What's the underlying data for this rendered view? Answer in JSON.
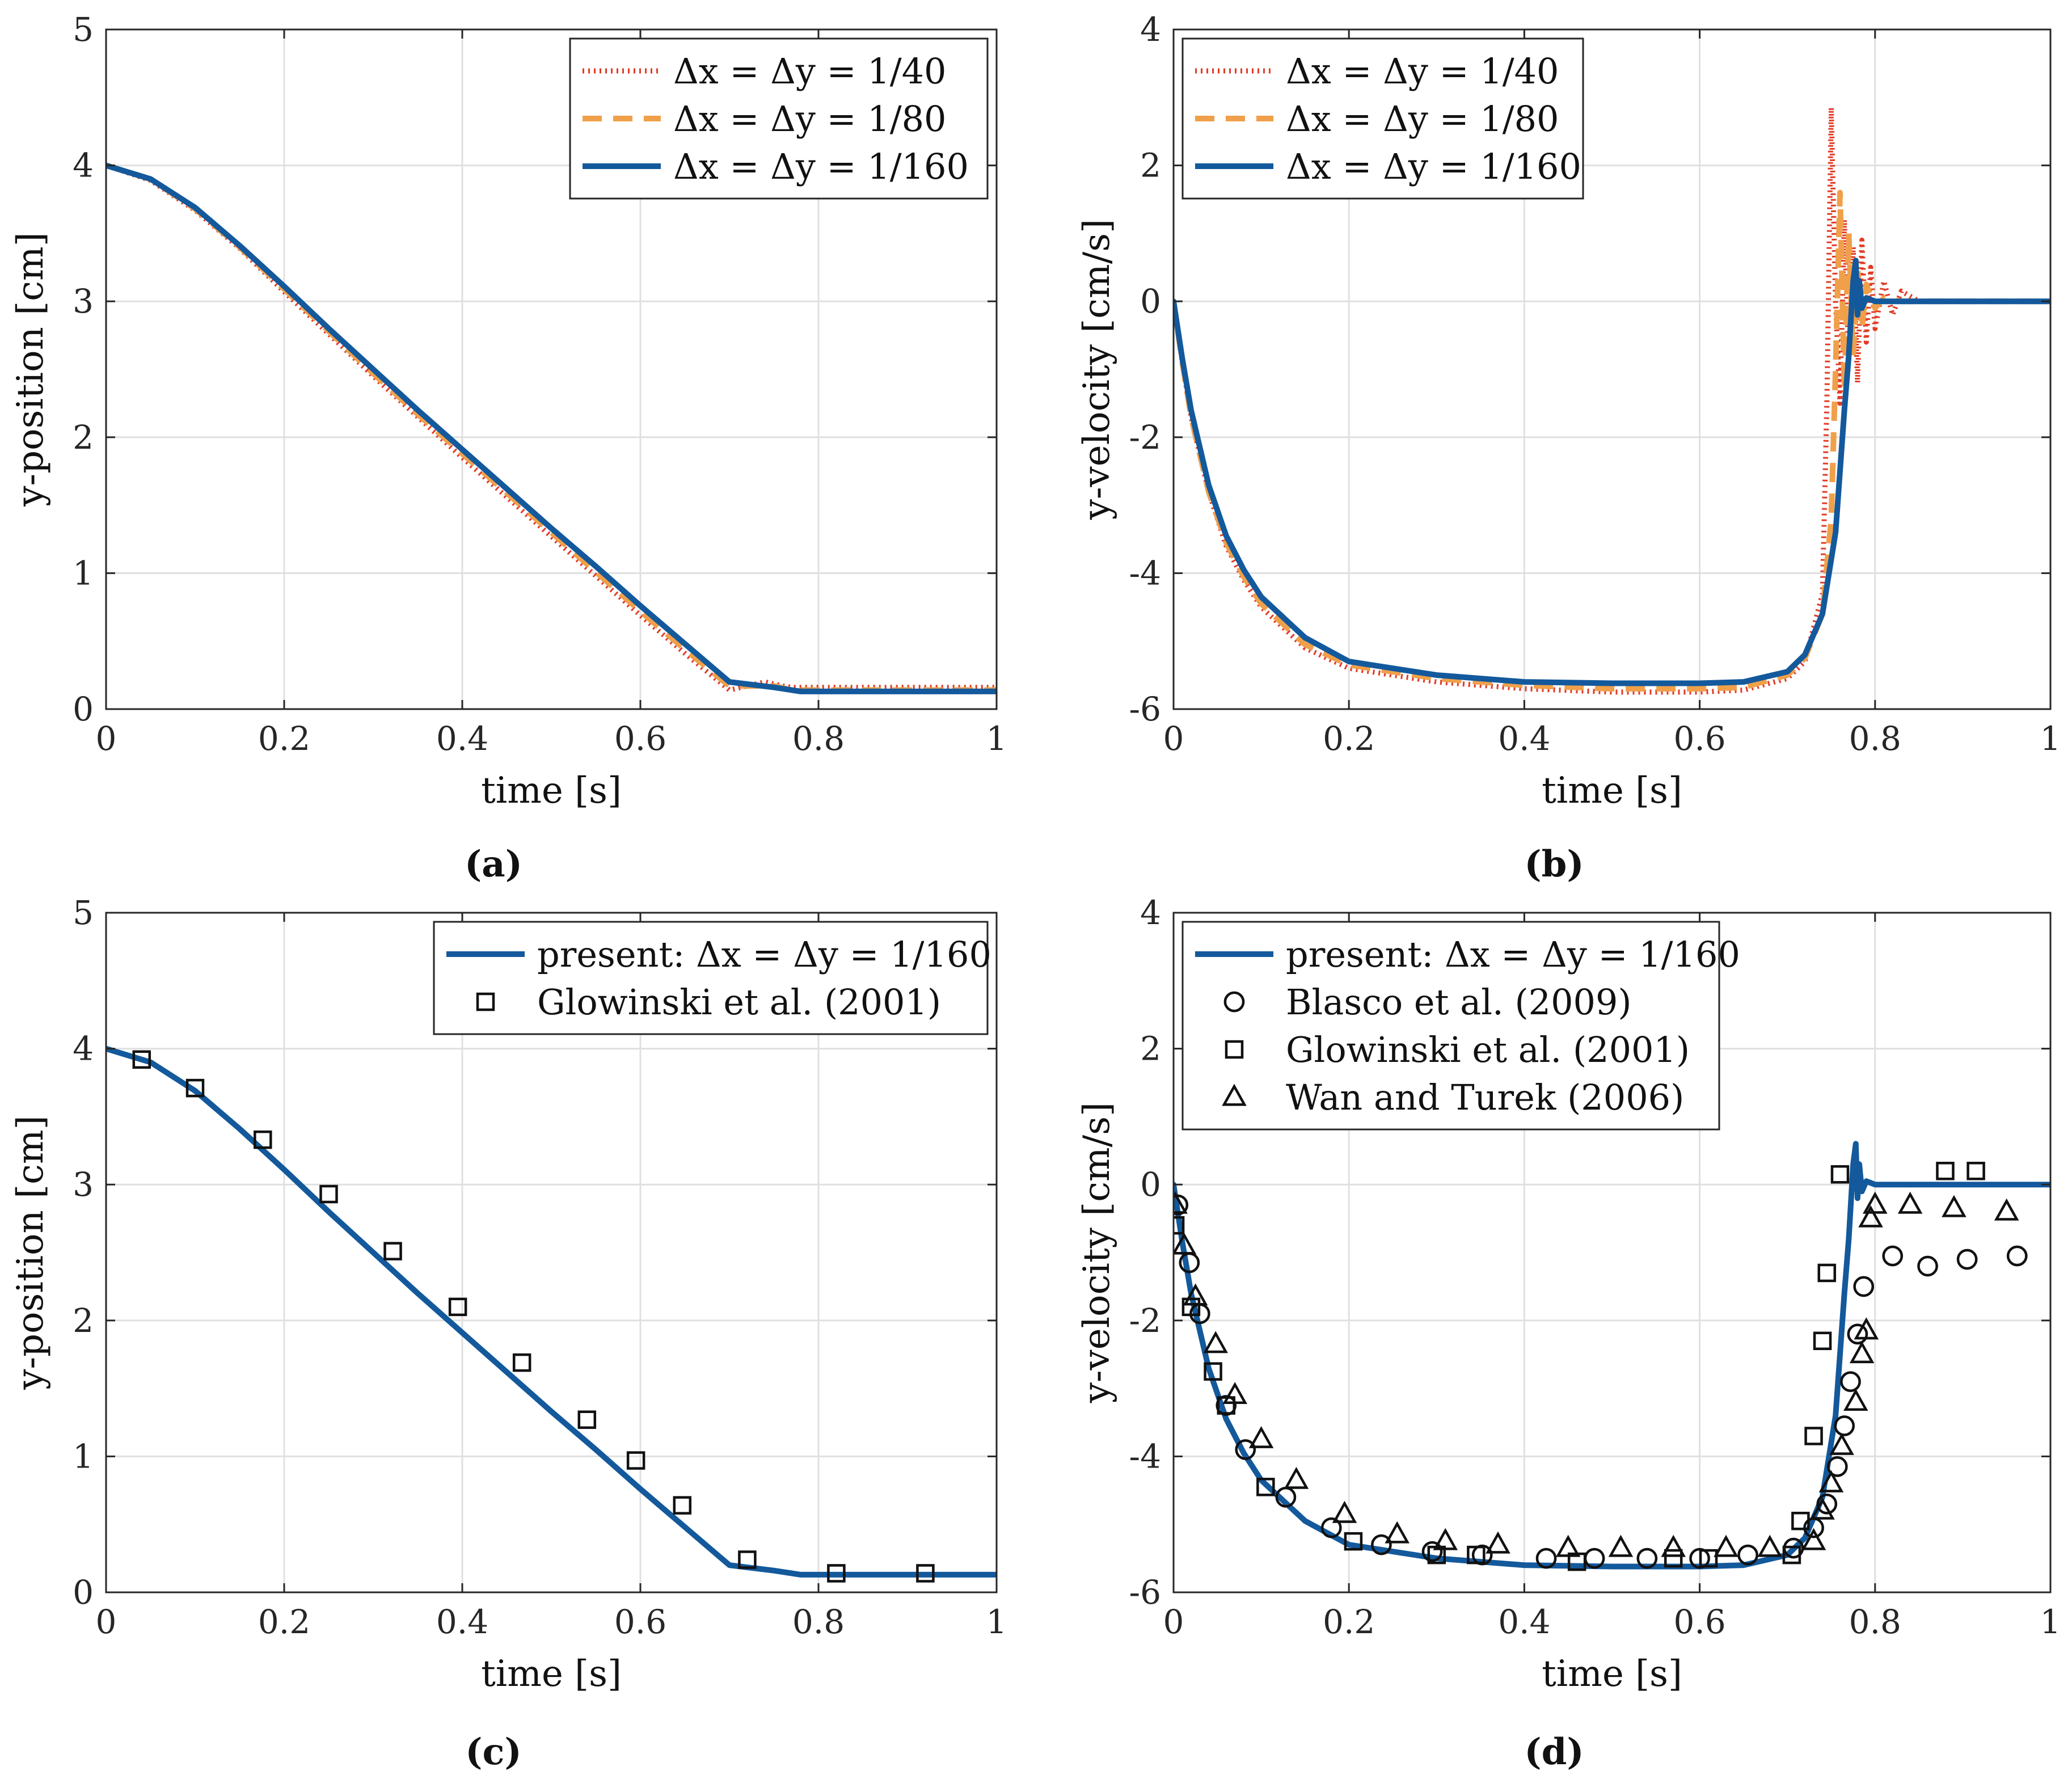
{
  "colors": {
    "red": "#e23b26",
    "orange": "#f0a04a",
    "blue": "#13599c",
    "black": "#111111",
    "grid": "#e0e0e0"
  },
  "chart_data": [
    {
      "id": "a",
      "type": "line",
      "panel_label": "(a)",
      "xlabel": "time [s]",
      "ylabel": "y-position [cm]",
      "xlim": [
        0,
        1
      ],
      "ylim": [
        0,
        5
      ],
      "xticks": [
        0,
        0.2,
        0.4,
        0.6,
        0.8,
        1
      ],
      "yticks": [
        0,
        1,
        2,
        3,
        4,
        5
      ],
      "grid": true,
      "legend_placement": "top-right",
      "series": [
        {
          "name": "Δx = Δy = 1/40",
          "style": "dotted",
          "color": "red",
          "x": [
            0,
            0.05,
            0.1,
            0.15,
            0.2,
            0.25,
            0.3,
            0.35,
            0.4,
            0.45,
            0.5,
            0.55,
            0.6,
            0.65,
            0.7,
            0.74,
            0.76,
            0.77,
            0.8,
            0.9,
            1.0
          ],
          "y": [
            4.0,
            3.89,
            3.67,
            3.39,
            3.07,
            2.76,
            2.45,
            2.15,
            1.85,
            1.56,
            1.27,
            0.98,
            0.69,
            0.41,
            0.14,
            0.2,
            0.17,
            0.16,
            0.16,
            0.16,
            0.16
          ]
        },
        {
          "name": "Δx = Δy = 1/80",
          "style": "dashed",
          "color": "orange",
          "x": [
            0,
            0.05,
            0.1,
            0.15,
            0.2,
            0.25,
            0.3,
            0.35,
            0.4,
            0.45,
            0.5,
            0.55,
            0.6,
            0.65,
            0.7,
            0.75,
            0.77,
            0.8,
            0.9,
            1.0
          ],
          "y": [
            4.0,
            3.9,
            3.68,
            3.4,
            3.09,
            2.78,
            2.47,
            2.17,
            1.88,
            1.59,
            1.3,
            1.01,
            0.72,
            0.44,
            0.17,
            0.17,
            0.14,
            0.14,
            0.14,
            0.14
          ]
        },
        {
          "name": "Δx = Δy = 1/160",
          "style": "solid",
          "color": "blue",
          "x": [
            0,
            0.05,
            0.1,
            0.15,
            0.2,
            0.25,
            0.3,
            0.35,
            0.4,
            0.45,
            0.5,
            0.55,
            0.6,
            0.65,
            0.7,
            0.75,
            0.78,
            0.8,
            0.9,
            1.0
          ],
          "y": [
            4.0,
            3.9,
            3.69,
            3.41,
            3.11,
            2.8,
            2.5,
            2.2,
            1.91,
            1.62,
            1.33,
            1.05,
            0.76,
            0.48,
            0.2,
            0.16,
            0.13,
            0.13,
            0.13,
            0.13
          ]
        }
      ]
    },
    {
      "id": "b",
      "type": "line",
      "panel_label": "(b)",
      "xlabel": "time [s]",
      "ylabel": "y-velocity [cm/s]",
      "xlim": [
        0,
        1
      ],
      "ylim": [
        -6,
        4
      ],
      "xticks": [
        0,
        0.2,
        0.4,
        0.6,
        0.8,
        1
      ],
      "yticks": [
        -6,
        -4,
        -2,
        0,
        2,
        4
      ],
      "grid": true,
      "legend_placement": "top-left",
      "series": [
        {
          "name": "Δx = Δy = 1/40",
          "style": "dotted",
          "color": "red",
          "x": [
            0,
            0.01,
            0.02,
            0.04,
            0.06,
            0.08,
            0.1,
            0.15,
            0.2,
            0.3,
            0.4,
            0.5,
            0.6,
            0.65,
            0.7,
            0.72,
            0.74,
            0.745,
            0.75,
            0.755,
            0.76,
            0.765,
            0.77,
            0.775,
            0.78,
            0.785,
            0.79,
            0.795,
            0.8,
            0.81,
            0.82,
            0.83,
            0.85,
            0.9,
            1.0
          ],
          "y": [
            0,
            -0.9,
            -1.7,
            -2.8,
            -3.6,
            -4.1,
            -4.5,
            -5.1,
            -5.4,
            -5.6,
            -5.7,
            -5.75,
            -5.75,
            -5.72,
            -5.55,
            -5.3,
            -4.3,
            -1.5,
            2.85,
            0.0,
            -1.5,
            1.2,
            -0.9,
            0.8,
            -1.2,
            0.9,
            -0.6,
            0.5,
            -0.4,
            0.3,
            -0.2,
            0.15,
            0.0,
            0.0,
            0.0
          ]
        },
        {
          "name": "Δx = Δy = 1/80",
          "style": "dashed",
          "color": "orange",
          "x": [
            0,
            0.01,
            0.02,
            0.04,
            0.06,
            0.08,
            0.1,
            0.15,
            0.2,
            0.3,
            0.4,
            0.5,
            0.6,
            0.65,
            0.7,
            0.72,
            0.74,
            0.75,
            0.755,
            0.76,
            0.765,
            0.77,
            0.775,
            0.78,
            0.785,
            0.79,
            0.8,
            0.81,
            0.83,
            0.9,
            1.0
          ],
          "y": [
            0,
            -0.9,
            -1.7,
            -2.8,
            -3.55,
            -4.05,
            -4.45,
            -5.05,
            -5.35,
            -5.55,
            -5.65,
            -5.7,
            -5.7,
            -5.68,
            -5.5,
            -5.25,
            -4.6,
            -3.2,
            -1.0,
            1.6,
            -1.3,
            1.0,
            -0.8,
            0.5,
            -0.4,
            0.25,
            -0.1,
            0.05,
            0.0,
            0.0,
            0.0
          ]
        },
        {
          "name": "Δx = Δy = 1/160",
          "style": "solid",
          "color": "blue",
          "x": [
            0,
            0.01,
            0.02,
            0.04,
            0.06,
            0.08,
            0.1,
            0.15,
            0.2,
            0.3,
            0.4,
            0.5,
            0.6,
            0.65,
            0.7,
            0.72,
            0.74,
            0.755,
            0.765,
            0.77,
            0.775,
            0.778,
            0.78,
            0.782,
            0.785,
            0.79,
            0.8,
            0.85,
            0.9,
            1.0
          ],
          "y": [
            0,
            -0.85,
            -1.6,
            -2.7,
            -3.45,
            -3.95,
            -4.35,
            -4.95,
            -5.3,
            -5.5,
            -5.6,
            -5.62,
            -5.62,
            -5.6,
            -5.45,
            -5.2,
            -4.6,
            -3.4,
            -1.6,
            -0.8,
            0.3,
            0.6,
            -0.2,
            0.3,
            -0.1,
            0.05,
            0.0,
            0.0,
            0.0,
            0.0
          ]
        }
      ]
    },
    {
      "id": "c",
      "type": "line",
      "panel_label": "(c)",
      "xlabel": "time [s]",
      "ylabel": "y-position [cm]",
      "xlim": [
        0,
        1
      ],
      "ylim": [
        0,
        5
      ],
      "xticks": [
        0,
        0.2,
        0.4,
        0.6,
        0.8,
        1
      ],
      "yticks": [
        0,
        1,
        2,
        3,
        4,
        5
      ],
      "grid": true,
      "legend_placement": "top-right",
      "series": [
        {
          "name": "present: Δx = Δy = 1/160",
          "style": "solid",
          "color": "blue",
          "x": [
            0,
            0.05,
            0.1,
            0.15,
            0.2,
            0.25,
            0.3,
            0.35,
            0.4,
            0.45,
            0.5,
            0.55,
            0.6,
            0.65,
            0.7,
            0.75,
            0.78,
            0.8,
            0.9,
            1.0
          ],
          "y": [
            4.0,
            3.9,
            3.69,
            3.41,
            3.11,
            2.8,
            2.5,
            2.2,
            1.91,
            1.62,
            1.33,
            1.05,
            0.76,
            0.48,
            0.2,
            0.16,
            0.13,
            0.13,
            0.13,
            0.13
          ]
        },
        {
          "name": "Glowinski et al. (2001)",
          "style": "marker",
          "marker": "square",
          "color": "black",
          "x": [
            0.04,
            0.1,
            0.176,
            0.25,
            0.322,
            0.395,
            0.467,
            0.54,
            0.595,
            0.647,
            0.72,
            0.82,
            0.92
          ],
          "y": [
            3.92,
            3.71,
            3.33,
            2.93,
            2.51,
            2.1,
            1.69,
            1.27,
            0.97,
            0.64,
            0.24,
            0.14,
            0.14
          ]
        }
      ]
    },
    {
      "id": "d",
      "type": "scatter",
      "panel_label": "(d)",
      "xlabel": "time [s]",
      "ylabel": "y-velocity [cm/s]",
      "xlim": [
        0,
        1
      ],
      "ylim": [
        -6,
        4
      ],
      "xticks": [
        0,
        0.2,
        0.4,
        0.6,
        0.8,
        1
      ],
      "yticks": [
        -6,
        -4,
        -2,
        0,
        2,
        4
      ],
      "grid": true,
      "legend_placement": "top-left",
      "series": [
        {
          "name": "present: Δx = Δy = 1/160",
          "style": "solid",
          "color": "blue",
          "x": [
            0,
            0.01,
            0.02,
            0.04,
            0.06,
            0.08,
            0.1,
            0.15,
            0.2,
            0.3,
            0.4,
            0.5,
            0.6,
            0.65,
            0.7,
            0.72,
            0.74,
            0.755,
            0.765,
            0.77,
            0.775,
            0.778,
            0.78,
            0.782,
            0.785,
            0.79,
            0.8,
            0.85,
            0.9,
            1.0
          ],
          "y": [
            0,
            -0.85,
            -1.6,
            -2.7,
            -3.45,
            -3.95,
            -4.35,
            -4.95,
            -5.3,
            -5.5,
            -5.6,
            -5.62,
            -5.62,
            -5.6,
            -5.45,
            -5.2,
            -4.6,
            -3.4,
            -1.6,
            -0.8,
            0.3,
            0.6,
            -0.2,
            0.3,
            -0.1,
            0.05,
            0.0,
            0.0,
            0.0,
            0.0
          ]
        },
        {
          "name": "Blasco et al. (2009)",
          "style": "marker",
          "marker": "circle",
          "color": "black",
          "x": [
            0.005,
            0.018,
            0.03,
            0.06,
            0.082,
            0.128,
            0.18,
            0.237,
            0.295,
            0.352,
            0.425,
            0.48,
            0.54,
            0.6,
            0.655,
            0.707,
            0.73,
            0.745,
            0.757,
            0.765,
            0.772,
            0.78,
            0.787,
            0.82,
            0.86,
            0.905,
            0.962
          ],
          "y": [
            -0.3,
            -1.15,
            -1.9,
            -3.25,
            -3.9,
            -4.6,
            -5.05,
            -5.3,
            -5.4,
            -5.45,
            -5.5,
            -5.5,
            -5.5,
            -5.5,
            -5.45,
            -5.35,
            -5.05,
            -4.7,
            -4.15,
            -3.55,
            -2.9,
            -2.2,
            -1.5,
            -1.05,
            -1.2,
            -1.1,
            -1.05
          ]
        },
        {
          "name": "Glowinski et al. (2001)",
          "style": "marker",
          "marker": "square",
          "color": "black",
          "x": [
            0.002,
            0.02,
            0.045,
            0.06,
            0.105,
            0.205,
            0.3,
            0.345,
            0.46,
            0.57,
            0.61,
            0.705,
            0.715,
            0.73,
            0.74,
            0.745,
            0.76,
            0.88,
            0.915
          ],
          "y": [
            -0.6,
            -1.8,
            -2.75,
            -3.25,
            -4.45,
            -5.25,
            -5.45,
            -5.45,
            -5.55,
            -5.5,
            -5.5,
            -5.45,
            -4.95,
            -3.7,
            -2.3,
            -1.3,
            0.15,
            0.2,
            0.2
          ]
        },
        {
          "name": "Wan and Turek (2006)",
          "style": "marker",
          "marker": "triangle",
          "color": "black",
          "x": [
            0.002,
            0.012,
            0.025,
            0.048,
            0.07,
            0.1,
            0.14,
            0.195,
            0.255,
            0.31,
            0.37,
            0.45,
            0.51,
            0.57,
            0.63,
            0.68,
            0.73,
            0.74,
            0.75,
            0.762,
            0.778,
            0.785,
            0.79,
            0.795,
            0.8,
            0.84,
            0.89,
            0.95
          ],
          "y": [
            -0.3,
            -0.9,
            -1.65,
            -2.35,
            -3.1,
            -3.75,
            -4.35,
            -4.85,
            -5.15,
            -5.25,
            -5.3,
            -5.35,
            -5.35,
            -5.35,
            -5.35,
            -5.35,
            -5.25,
            -4.8,
            -4.4,
            -3.85,
            -3.2,
            -2.5,
            -2.15,
            -0.5,
            -0.3,
            -0.3,
            -0.35,
            -0.4
          ]
        }
      ]
    }
  ]
}
